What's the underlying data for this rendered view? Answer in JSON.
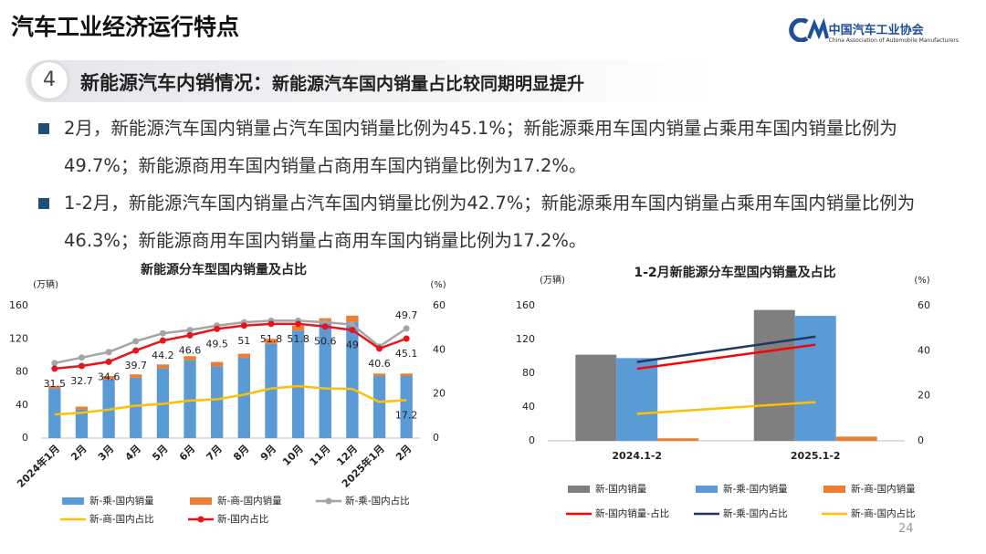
{
  "header": {
    "title": "汽车工业经济运行特点",
    "logo_name": "中国汽车工业协会",
    "logo_subtitle": "China Association of Automobile Manufacturers"
  },
  "section": {
    "number": "4",
    "heading": "新能源汽车内销情况：",
    "subheading": "新能源汽车国内销量占比较同期明显提升"
  },
  "bullets": [
    "2月，新能源汽车国内销量占汽车国内销量比例为45.1%；新能源乘用车国内销量占乘用车国内销量比例为49.7%；新能源商用车国内销量占商用车国内销量比例为17.2%。",
    "1-2月，新能源汽车国内销量占汽车国内销量比例为42.7%；新能源乘用车国内销量占乘用车国内销量比例为46.3%；新能源商用车国内销量占商用车国内销量比例为17.2%。"
  ],
  "page_number": "24",
  "chart_data": [
    {
      "type": "combo",
      "title": "新能源分车型国内销量及占比",
      "ylabel": "(万辆)",
      "y2label": "(%)",
      "stacked": true,
      "categories": [
        "2024年1月",
        "2月",
        "3月",
        "4月",
        "5月",
        "6月",
        "7月",
        "8月",
        "9月",
        "10月",
        "11月",
        "12月",
        "2025年1月",
        "2月"
      ],
      "ylim": [
        0,
        160
      ],
      "yticks": [
        0,
        40,
        80,
        120,
        160
      ],
      "y2lim": [
        0,
        60
      ],
      "y2ticks": [
        0,
        20,
        40,
        60
      ],
      "series": [
        {
          "name": "新-乘-国内销量",
          "kind": "bar",
          "color": "#5b9bd5",
          "values": [
            60,
            35,
            71,
            73,
            84,
            94,
            87,
            97,
            114,
            130,
            139,
            141,
            75,
            75
          ]
        },
        {
          "name": "新-商-国内销量",
          "kind": "bar",
          "color": "#ed7d31",
          "values": [
            3,
            3,
            4,
            4,
            5,
            5,
            5,
            5,
            6,
            6,
            6,
            7,
            3,
            3
          ]
        },
        {
          "name": "新-乘-国内占比",
          "kind": "line",
          "axis": "y2",
          "color": "#a5a5a5",
          "marker": true,
          "labels": "last",
          "label_position": "above",
          "values": [
            34,
            36.5,
            39,
            43.9,
            47.5,
            49,
            51,
            52.5,
            53.2,
            53.2,
            52.5,
            51.5,
            41.5,
            49.7
          ]
        },
        {
          "name": "新-商-国内占比",
          "kind": "line",
          "axis": "y2",
          "color": "#ffc000",
          "marker": false,
          "labels": "last",
          "label_position": "below",
          "values": [
            10.7,
            11.5,
            12.9,
            14.7,
            15.5,
            17,
            17.6,
            19.7,
            22.5,
            23.6,
            22.5,
            22.3,
            16.4,
            17.2
          ]
        },
        {
          "name": "新-国内占比",
          "kind": "line",
          "axis": "y2",
          "color": "#e8141b",
          "marker": true,
          "labels": "all",
          "label_position": "below",
          "values": [
            31.5,
            32.7,
            34.6,
            39.7,
            44.2,
            46.6,
            49.5,
            51,
            51.8,
            51.8,
            50.6,
            49,
            40.6,
            45.1
          ]
        }
      ]
    },
    {
      "type": "combo",
      "title": "1-2月新能源分车型国内销量及占比",
      "ylabel": "(万辆)",
      "y2label": "(%)",
      "stacked": false,
      "categories": [
        "2024.1-2",
        "2025.1-2"
      ],
      "ylim": [
        0,
        160
      ],
      "yticks": [
        0,
        40,
        80,
        120,
        160
      ],
      "y2lim": [
        0,
        60
      ],
      "y2ticks": [
        0,
        20,
        40,
        60
      ],
      "series": [
        {
          "name": "新-国内销量",
          "kind": "bar",
          "color": "#7f7f7f",
          "values": [
            102,
            155
          ]
        },
        {
          "name": "新-乘-国内销量",
          "kind": "bar",
          "color": "#5b9bd5",
          "values": [
            98,
            148
          ]
        },
        {
          "name": "新-商-国内销量",
          "kind": "bar",
          "color": "#ed7d31",
          "values": [
            3,
            5
          ]
        },
        {
          "name": "新-国内销量-占比",
          "kind": "line",
          "axis": "y2",
          "color": "#ff0000",
          "marker": false,
          "labels": "none",
          "values": [
            32,
            42.7
          ]
        },
        {
          "name": "新-乘-国内占比",
          "kind": "line",
          "axis": "y2",
          "color": "#1f3864",
          "marker": false,
          "labels": "none",
          "values": [
            35,
            46.3
          ]
        },
        {
          "name": "新-商-国内占比",
          "kind": "line",
          "axis": "y2",
          "color": "#ffc000",
          "marker": false,
          "labels": "none",
          "values": [
            12,
            17.2
          ]
        }
      ]
    }
  ]
}
